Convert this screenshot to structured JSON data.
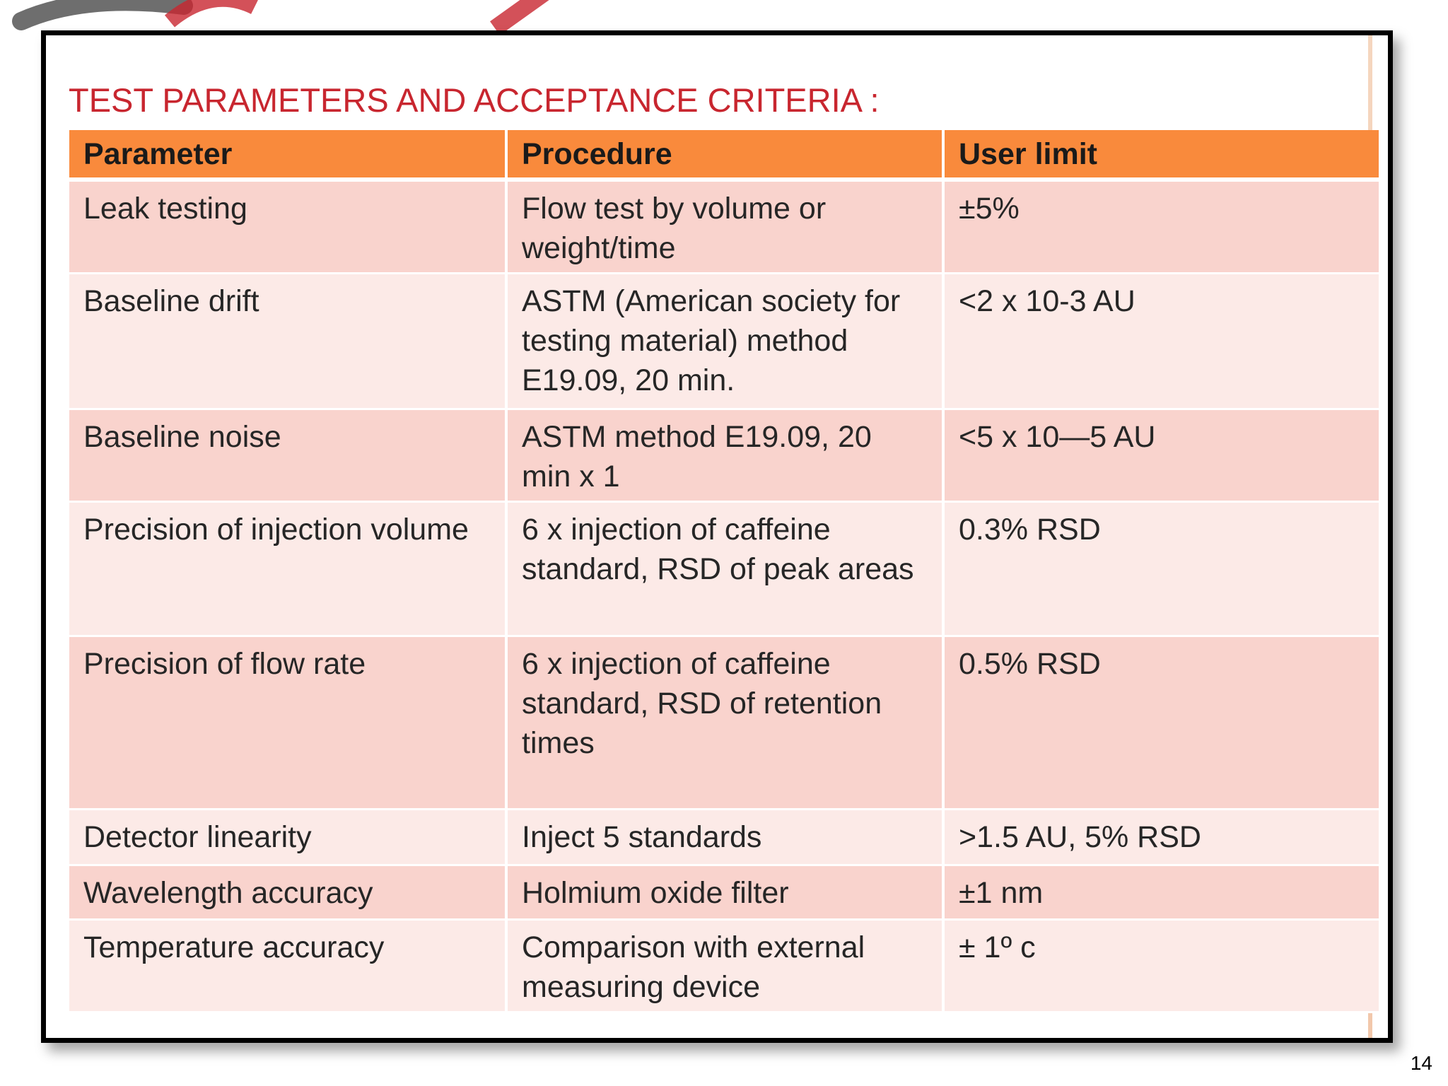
{
  "slide": {
    "title": "TEST PARAMETERS AND ACCEPTANCE CRITERIA :",
    "page_number": "14"
  },
  "table": {
    "headers": [
      "Parameter",
      "Procedure",
      "User limit"
    ],
    "rows": [
      {
        "parameter": "Leak testing",
        "procedure": "Flow test by volume or weight/time",
        "limit": "±5%"
      },
      {
        "parameter": "Baseline drift",
        "procedure": "ASTM (American society for testing material) method E19.09, 20 min.",
        "limit": "<2 x 10-3 AU"
      },
      {
        "parameter": "Baseline noise",
        "procedure": "ASTM method E19.09, 20 min x 1",
        "limit": "<5 x 10—5 AU"
      },
      {
        "parameter": "Precision of injection volume",
        "procedure": "6 x injection of caffeine standard, RSD of peak areas",
        "limit": "0.3% RSD"
      },
      {
        "parameter": "Precision of flow rate",
        "procedure": "6 x injection of caffeine standard, RSD of retention times",
        "limit": "0.5% RSD"
      },
      {
        "parameter": "Detector linearity",
        "procedure": "Inject 5 standards",
        "limit": ">1.5 AU, 5% RSD"
      },
      {
        "parameter": "Wavelength accuracy",
        "procedure": "Holmium oxide filter",
        "limit": "±1 nm"
      },
      {
        "parameter": "Temperature accuracy",
        "procedure": "Comparison with external measuring device",
        "limit": "± 1º c"
      }
    ]
  },
  "colors": {
    "title": "#c8262f",
    "header_bg": "#f98a3c",
    "row_odd": "#f9d3cd",
    "row_even": "#fceae7"
  }
}
